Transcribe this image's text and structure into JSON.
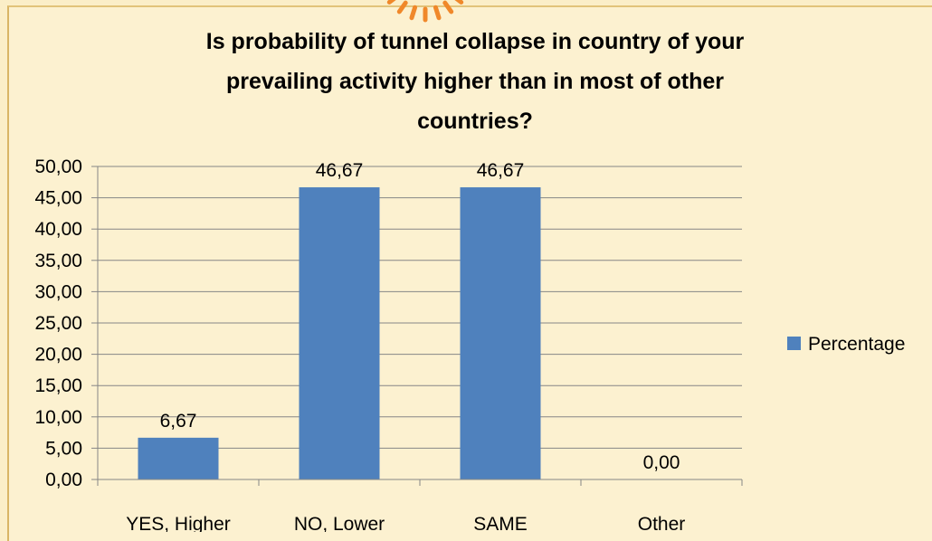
{
  "colors": {
    "background": "#fcf1d0",
    "bar": "#4f81bd",
    "axis": "#868686",
    "decoration": "#f0882a"
  },
  "chart_data": {
    "type": "bar",
    "title_lines": [
      "Is probability of tunnel collapse in country of your",
      "prevailing activity higher than in most of other",
      "countries?"
    ],
    "categories": [
      "YES, Higher",
      "NO, Lower",
      "SAME",
      "Other"
    ],
    "series": [
      {
        "name": "Percentage",
        "values": [
          6.67,
          46.67,
          46.67,
          0.0
        ],
        "value_labels": [
          "6,67",
          "46,67",
          "46,67",
          "0,00"
        ]
      }
    ],
    "ylim": [
      0,
      50
    ],
    "ytick_labels": [
      "0,00",
      "5,00",
      "10,00",
      "15,00",
      "20,00",
      "25,00",
      "30,00",
      "35,00",
      "40,00",
      "45,00",
      "50,00"
    ],
    "xlabel": "",
    "ylabel": "",
    "grid": true,
    "legend_position": "right"
  }
}
